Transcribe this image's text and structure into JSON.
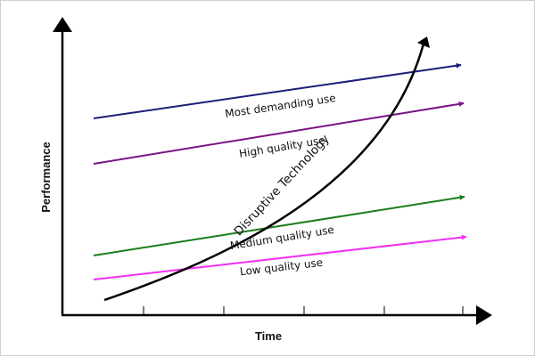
{
  "diagram": {
    "x_axis_label": "Time",
    "y_axis_label": "Performance",
    "lines": [
      {
        "label": "Most demanding use",
        "color": "#1b1e78"
      },
      {
        "label": "High quality use",
        "color": "#7b1287"
      },
      {
        "label": "Medium quality use",
        "color": "#1a7d1a"
      },
      {
        "label": "Low quality use",
        "color": "#f22ff2"
      }
    ],
    "curve": {
      "label": "Disruptive Technology",
      "color": "#000000"
    }
  }
}
